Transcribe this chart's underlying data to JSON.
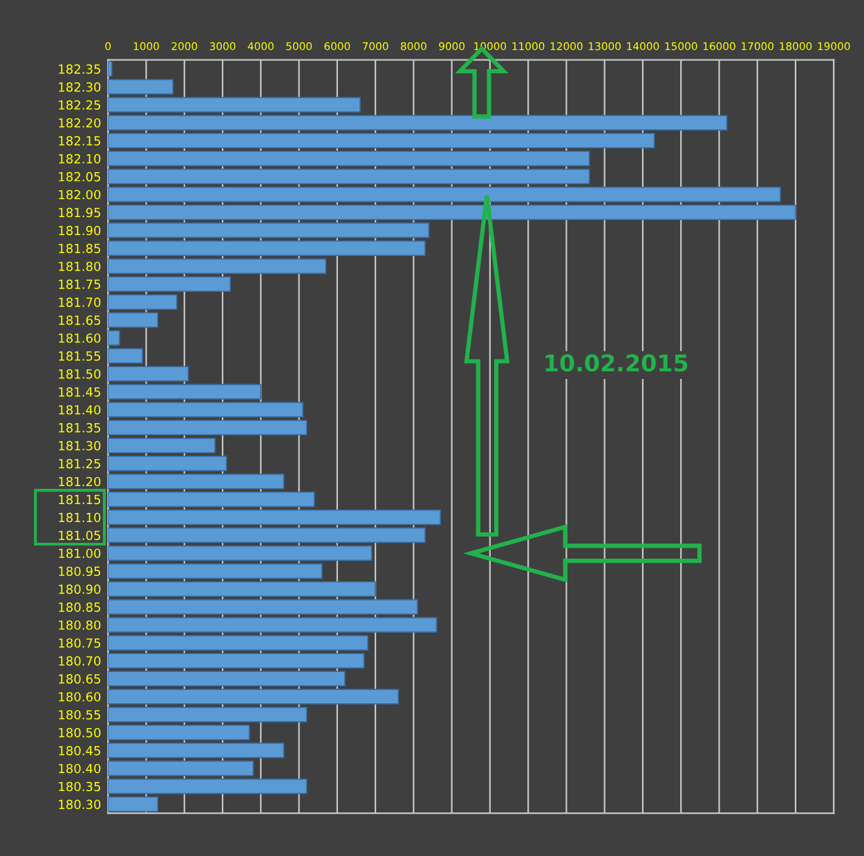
{
  "chart_data": {
    "type": "bar",
    "orientation": "horizontal",
    "categories": [
      "182.35",
      "182.30",
      "182.25",
      "182.20",
      "182.15",
      "182.10",
      "182.05",
      "182.00",
      "181.95",
      "181.90",
      "181.85",
      "181.80",
      "181.75",
      "181.70",
      "181.65",
      "181.60",
      "181.55",
      "181.50",
      "181.45",
      "181.40",
      "181.35",
      "181.30",
      "181.25",
      "181.20",
      "181.15",
      "181.10",
      "181.05",
      "181.00",
      "180.95",
      "180.90",
      "180.85",
      "180.80",
      "180.75",
      "180.70",
      "180.65",
      "180.60",
      "180.55",
      "180.50",
      "180.45",
      "180.40",
      "180.35",
      "180.30"
    ],
    "values": [
      100,
      1700,
      6600,
      16200,
      14300,
      12600,
      12600,
      17600,
      18000,
      8400,
      8300,
      5700,
      3200,
      1800,
      1300,
      300,
      900,
      2100,
      4000,
      5100,
      5200,
      2800,
      3100,
      4600,
      5400,
      8700,
      8300,
      6900,
      5600,
      7000,
      8100,
      8600,
      6800,
      6700,
      6200,
      7600,
      5200,
      3700,
      4600,
      3800,
      5200,
      1300
    ],
    "color": "#5b9bd5",
    "xlim": [
      0,
      19000
    ],
    "xticks": [
      0,
      1000,
      2000,
      3000,
      4000,
      5000,
      6000,
      7000,
      8000,
      9000,
      10000,
      11000,
      12000,
      13000,
      14000,
      15000,
      16000,
      17000,
      18000,
      19000
    ],
    "grid": "x",
    "annotations": [
      "10.02.2015"
    ]
  }
}
